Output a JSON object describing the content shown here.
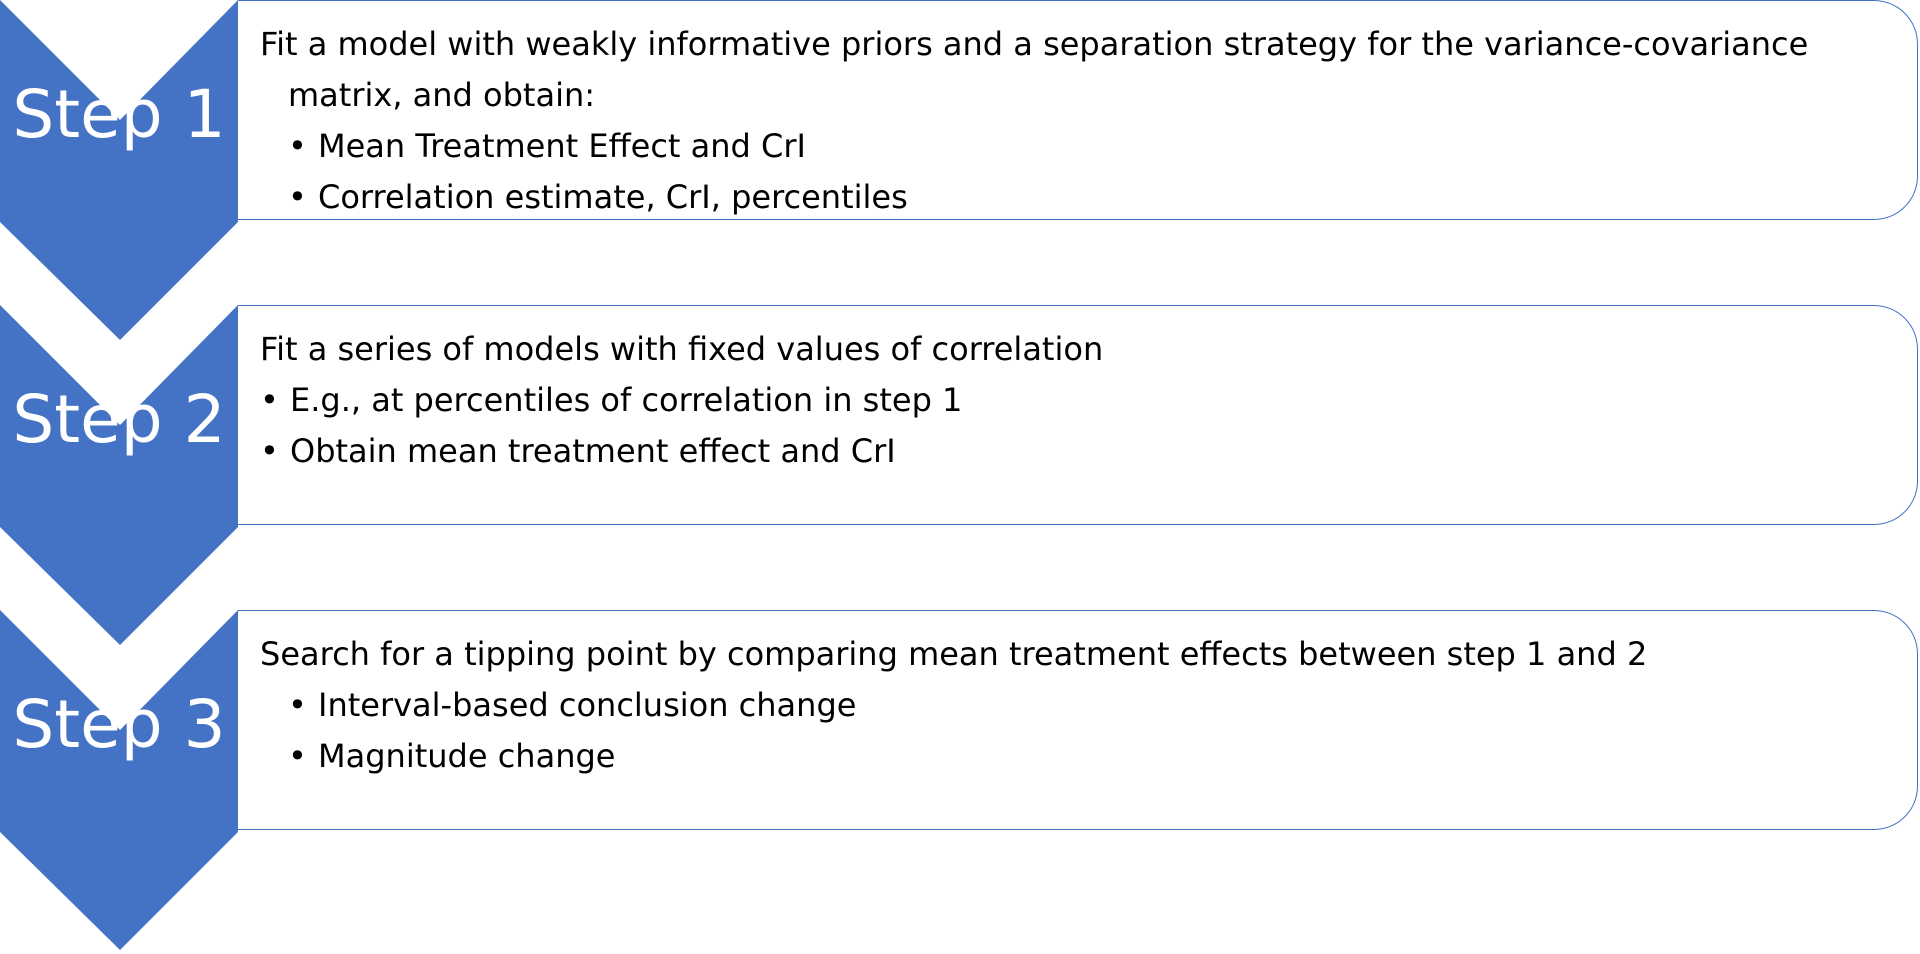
{
  "colors": {
    "accent": "#4472C4",
    "chevron_text": "#ffffff",
    "box_border": "#4472C4",
    "text": "#000000"
  },
  "steps": [
    {
      "label": "Step 1",
      "heading": "Fit a model with weakly informative priors and a separation strategy for the variance-covariance",
      "heading_continuation": "matrix, and obtain:",
      "bullets": [
        "Mean Treatment Effect and CrI",
        "Correlation estimate, CrI, percentiles"
      ]
    },
    {
      "label": "Step 2",
      "heading": "Fit a series of models with fixed values of correlation",
      "bullets": [
        "E.g., at percentiles of correlation in step 1",
        "Obtain mean treatment effect and CrI"
      ]
    },
    {
      "label": "Step 3",
      "heading": "Search for a tipping point by comparing mean treatment effects between step 1 and 2",
      "bullets": [
        "Interval-based conclusion change",
        "Magnitude change"
      ]
    }
  ],
  "bullet_glyph": "•"
}
